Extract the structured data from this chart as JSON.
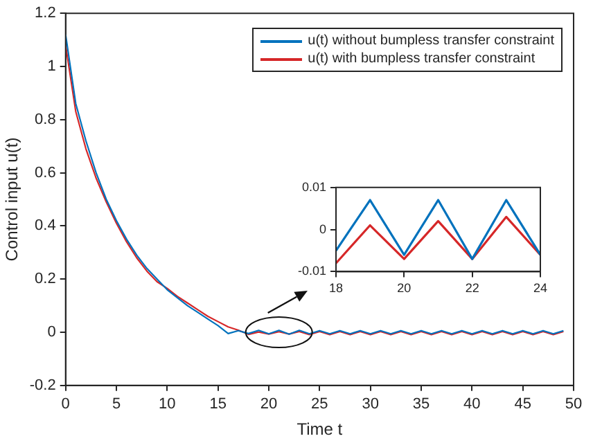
{
  "chart_data": [
    {
      "type": "line",
      "xlabel": "Time t",
      "ylabel": "Control input u(t)",
      "x": [
        0,
        1,
        2,
        3,
        4,
        5,
        6,
        7,
        8,
        9,
        10,
        11,
        12,
        13,
        14,
        15,
        16,
        17,
        18,
        19,
        20,
        21,
        22,
        23,
        24,
        25,
        26,
        27,
        28,
        29,
        30,
        31,
        32,
        33,
        34,
        35,
        36,
        37,
        38,
        39,
        40,
        41,
        42,
        43,
        44,
        45,
        46,
        47,
        48,
        49
      ],
      "xlim": [
        0,
        50
      ],
      "xticks": [
        0,
        5,
        10,
        15,
        20,
        25,
        30,
        35,
        40,
        45,
        50
      ],
      "ylim": [
        -0.2,
        1.2
      ],
      "yticks": [
        -0.2,
        0,
        0.2,
        0.4,
        0.6,
        0.8,
        1,
        1.2
      ],
      "grid": false,
      "legend": "top right",
      "series": [
        {
          "name": "u(t) without bumpless transfer constraint",
          "color": "#0072bd",
          "values": [
            1.12,
            0.86,
            0.72,
            0.6,
            0.5,
            0.42,
            0.35,
            0.29,
            0.24,
            0.2,
            0.16,
            0.13,
            0.1,
            0.075,
            0.05,
            0.025,
            -0.005,
            0.006,
            -0.005,
            0.007,
            -0.006,
            0.007,
            -0.007,
            0.007,
            -0.006,
            0.006,
            -0.006,
            0.006,
            -0.006,
            0.006,
            -0.006,
            0.006,
            -0.006,
            0.006,
            -0.006,
            0.006,
            -0.006,
            0.006,
            -0.006,
            0.006,
            -0.006,
            0.006,
            -0.006,
            0.006,
            -0.006,
            0.006,
            -0.006,
            0.006,
            -0.006,
            0.006
          ]
        },
        {
          "name": "u(t) with bumpless transfer constraint",
          "color": "#d62728",
          "values": [
            1.08,
            0.83,
            0.69,
            0.58,
            0.49,
            0.41,
            0.34,
            0.28,
            0.23,
            0.19,
            0.165,
            0.135,
            0.11,
            0.085,
            0.06,
            0.04,
            0.02,
            0.008,
            -0.008,
            0.001,
            -0.007,
            0.002,
            -0.007,
            0.003,
            -0.009,
            0.003,
            -0.009,
            0.003,
            -0.009,
            0.003,
            -0.009,
            0.003,
            -0.009,
            0.003,
            -0.009,
            0.003,
            -0.009,
            0.003,
            -0.009,
            0.003,
            -0.009,
            0.003,
            -0.009,
            0.003,
            -0.009,
            0.003,
            -0.009,
            0.003,
            -0.009,
            0.003
          ]
        }
      ]
    },
    {
      "type": "line",
      "x": [
        18,
        19,
        20,
        21,
        22,
        23,
        24
      ],
      "xlim": [
        18,
        24
      ],
      "xticks": [
        18,
        20,
        22,
        24
      ],
      "ylim": [
        -0.01,
        0.01
      ],
      "yticks": [
        -0.01,
        0,
        0.01
      ],
      "grid": false,
      "series": [
        {
          "color": "#0072bd",
          "values": [
            -0.005,
            0.007,
            -0.006,
            0.007,
            -0.007,
            0.007,
            -0.006
          ]
        },
        {
          "color": "#d62728",
          "values": [
            -0.008,
            0.001,
            -0.007,
            0.002,
            -0.007,
            0.003,
            -0.006
          ]
        }
      ]
    }
  ]
}
